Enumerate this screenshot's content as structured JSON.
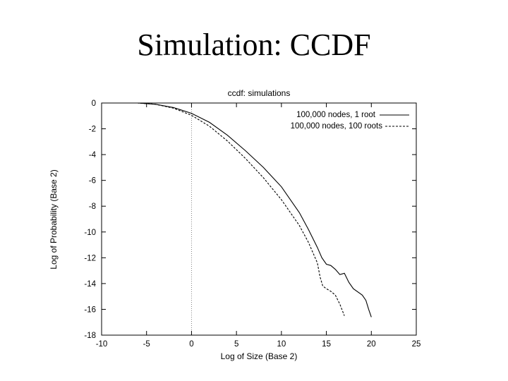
{
  "slide": {
    "title": "Simulation: CCDF"
  },
  "chart_data": {
    "type": "line",
    "title": "ccdf: simulations",
    "xlabel": "Log of Size (Base 2)",
    "ylabel": "Log of Probability (Base 2)",
    "xlim": [
      -10,
      25
    ],
    "ylim": [
      -18,
      0
    ],
    "xticks": [
      -10,
      -5,
      0,
      5,
      10,
      15,
      20,
      25
    ],
    "yticks": [
      0,
      -2,
      -4,
      -6,
      -8,
      -10,
      -12,
      -14,
      -16,
      -18
    ],
    "grid": false,
    "legend_position": "top-right",
    "reference_line_x": 0,
    "series": [
      {
        "name": "100,000 nodes, 1 root",
        "style": "solid",
        "points": [
          [
            -10,
            0
          ],
          [
            -6,
            0
          ],
          [
            -4,
            -0.1
          ],
          [
            -2,
            -0.35
          ],
          [
            0,
            -0.8
          ],
          [
            2,
            -1.5
          ],
          [
            4,
            -2.5
          ],
          [
            6,
            -3.7
          ],
          [
            8,
            -5.0
          ],
          [
            10,
            -6.5
          ],
          [
            12,
            -8.5
          ],
          [
            13,
            -9.8
          ],
          [
            14,
            -11.2
          ],
          [
            14.5,
            -12.0
          ],
          [
            15,
            -12.5
          ],
          [
            15.5,
            -12.6
          ],
          [
            16,
            -12.9
          ],
          [
            16.5,
            -13.3
          ],
          [
            17,
            -13.2
          ],
          [
            17.5,
            -13.9
          ],
          [
            18,
            -14.4
          ],
          [
            19,
            -14.9
          ],
          [
            19.4,
            -15.3
          ],
          [
            19.7,
            -16.0
          ],
          [
            20,
            -16.6
          ]
        ],
        "color": "#000000"
      },
      {
        "name": "100,000 nodes, 100 roots",
        "style": "dashed",
        "points": [
          [
            -10,
            0
          ],
          [
            -6,
            0
          ],
          [
            -4,
            -0.1
          ],
          [
            -2,
            -0.4
          ],
          [
            0,
            -0.95
          ],
          [
            2,
            -1.8
          ],
          [
            4,
            -2.95
          ],
          [
            6,
            -4.3
          ],
          [
            8,
            -5.8
          ],
          [
            10,
            -7.5
          ],
          [
            12,
            -9.5
          ],
          [
            13,
            -10.8
          ],
          [
            14,
            -12.4
          ],
          [
            14.3,
            -13.5
          ],
          [
            14.6,
            -14.2
          ],
          [
            15,
            -14.4
          ],
          [
            15.5,
            -14.6
          ],
          [
            16,
            -14.9
          ],
          [
            16.5,
            -15.6
          ],
          [
            17,
            -16.5
          ]
        ],
        "color": "#000000"
      }
    ]
  }
}
